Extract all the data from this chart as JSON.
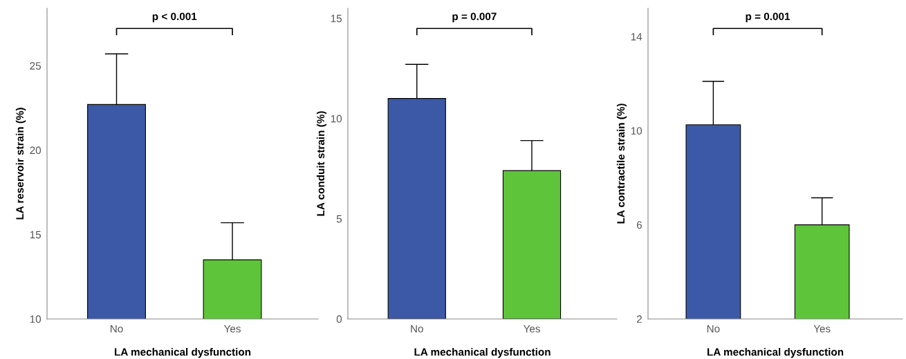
{
  "chart_data": [
    {
      "type": "bar",
      "categories": [
        "No",
        "Yes"
      ],
      "values": [
        22.7,
        13.5
      ],
      "colors": [
        "#3c59a8",
        "#5ec43a"
      ],
      "errors": [
        [
          22.7,
          25.7
        ],
        [
          13.5,
          15.7
        ]
      ],
      "xlabel": "LA mechanical dysfunction",
      "ylabel": "LA reservoir strain (%)",
      "ylim": [
        10,
        28.4
      ],
      "yticks": [
        10,
        15,
        20,
        25
      ],
      "annotations": [
        "p < 0.001"
      ],
      "grid": false,
      "legend": false
    },
    {
      "type": "bar",
      "categories": [
        "No",
        "Yes"
      ],
      "values": [
        11.0,
        7.4
      ],
      "colors": [
        "#3c59a8",
        "#5ec43a"
      ],
      "errors": [
        [
          11.0,
          12.7
        ],
        [
          7.4,
          8.9
        ]
      ],
      "xlabel": "LA mechanical dysfunction",
      "ylabel": "LA conduit strain (%)",
      "ylim": [
        0,
        15.5
      ],
      "yticks": [
        0,
        5,
        10,
        15
      ],
      "annotations": [
        "p = 0.007"
      ],
      "grid": false,
      "legend": false
    },
    {
      "type": "bar",
      "categories": [
        "No",
        "Yes"
      ],
      "values": [
        10.25,
        6.0
      ],
      "colors": [
        "#3c59a8",
        "#5ec43a"
      ],
      "errors": [
        [
          10.25,
          12.1
        ],
        [
          6.0,
          7.15
        ]
      ],
      "xlabel": "LA mechanical dysfunction",
      "ylabel": "LA contractile strain (%)",
      "ylim": [
        2,
        15.2
      ],
      "yticks": [
        2,
        6,
        10,
        14
      ],
      "annotations": [
        "p = 0.001"
      ],
      "grid": false,
      "legend": false
    }
  ]
}
